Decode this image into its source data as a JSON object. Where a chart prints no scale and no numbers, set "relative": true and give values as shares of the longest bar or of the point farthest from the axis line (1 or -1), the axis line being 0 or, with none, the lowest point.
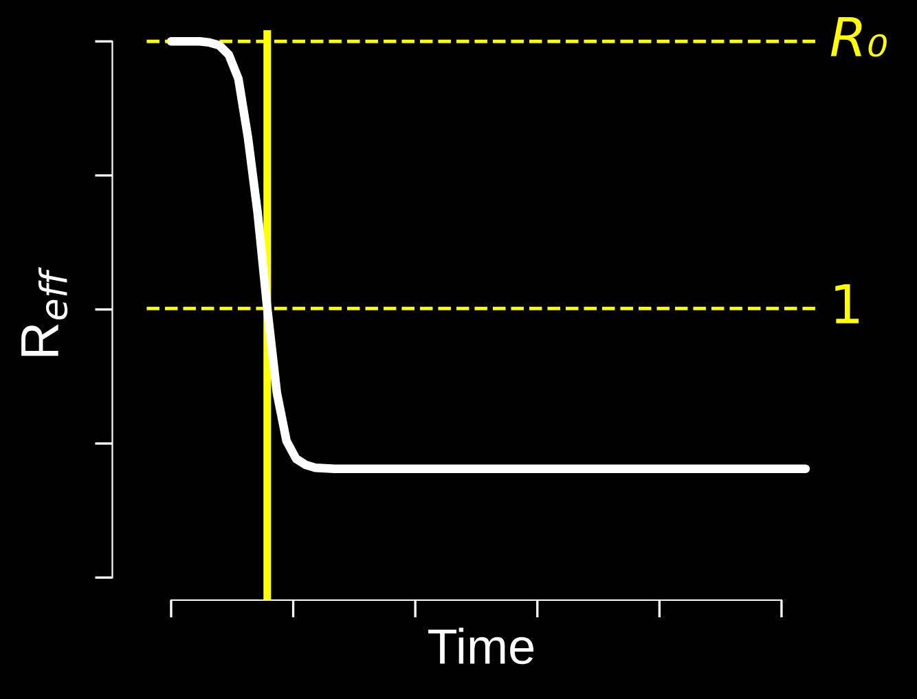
{
  "chart_data": {
    "type": "line",
    "relative": true,
    "xlabel": "Time",
    "ylabel": "R$_{eff}$",
    "categories": [
      null,
      null,
      null,
      null,
      null,
      null,
      null,
      null,
      null,
      null,
      null,
      null,
      null,
      null,
      null,
      null,
      null,
      null,
      null,
      null,
      null,
      null,
      null,
      null,
      null,
      null,
      null,
      null,
      null,
      null,
      null,
      null,
      null,
      null,
      null,
      null,
      null,
      null,
      null,
      null,
      null,
      null,
      null,
      null,
      null,
      null,
      null,
      null,
      null,
      null,
      null,
      null,
      null,
      null,
      null,
      null,
      null,
      null,
      null,
      null,
      null,
      null,
      null,
      null,
      null,
      null,
      null
    ],
    "series": [
      {
        "color": "#ffffff",
        "values": [
          1.0,
          1.0,
          1.0,
          1.0,
          0.998,
          0.993,
          0.976,
          0.933,
          0.827,
          0.693,
          0.522,
          0.371,
          0.285,
          0.253,
          0.242,
          0.237,
          0.236,
          0.235,
          0.235,
          0.235,
          0.235,
          0.235,
          0.235,
          0.235,
          0.235,
          0.235,
          0.235,
          0.235,
          0.235,
          0.235,
          0.235,
          0.235,
          0.235,
          0.235,
          0.235,
          0.235,
          0.235,
          0.235,
          0.235,
          0.235,
          0.235,
          0.235,
          0.235,
          0.235,
          0.235,
          0.235,
          0.235,
          0.235,
          0.235,
          0.235,
          0.235,
          0.235,
          0.235,
          0.235,
          0.235,
          0.235,
          0.235,
          0.235,
          0.235,
          0.235,
          0.235,
          0.235,
          0.235,
          0.235,
          0.235,
          0.235,
          0.235
        ]
      }
    ],
    "ref_lines": [
      {
        "axis": "y",
        "value": 1.0,
        "label": "R₀",
        "color": "#ffff00",
        "line_style": "dashed"
      },
      {
        "axis": "y",
        "value": 0.522,
        "label": "1",
        "color": "#ffff00",
        "line_style": "dashed"
      }
    ],
    "grid": false,
    "legend": false,
    "marker": "none",
    "line_style": "solid"
  }
}
